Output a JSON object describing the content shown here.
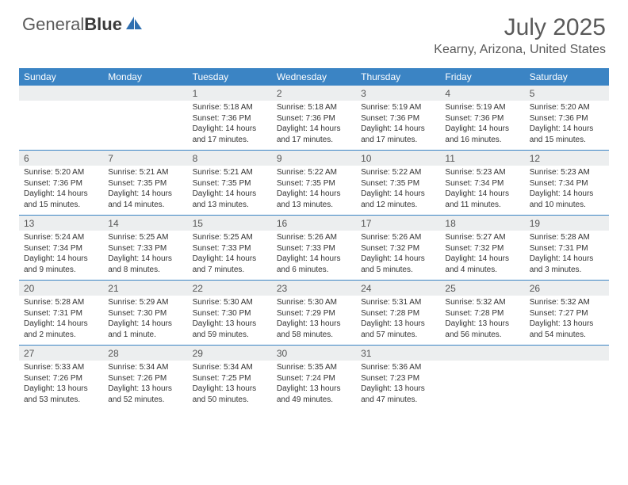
{
  "brand": {
    "part1": "General",
    "part2": "Blue"
  },
  "title": "July 2025",
  "location": "Kearny, Arizona, United States",
  "colors": {
    "header_bg": "#3b84c4",
    "header_text": "#ffffff",
    "daynum_bg": "#eceeef",
    "text": "#333333",
    "title_color": "#5a5a5a",
    "row_divider": "#3b84c4",
    "background": "#ffffff"
  },
  "day_headers": [
    "Sunday",
    "Monday",
    "Tuesday",
    "Wednesday",
    "Thursday",
    "Friday",
    "Saturday"
  ],
  "weeks": [
    {
      "nums": [
        "",
        "",
        "1",
        "2",
        "3",
        "4",
        "5"
      ],
      "cells": [
        null,
        null,
        {
          "sunrise": "Sunrise: 5:18 AM",
          "sunset": "Sunset: 7:36 PM",
          "daylight": "Daylight: 14 hours and 17 minutes."
        },
        {
          "sunrise": "Sunrise: 5:18 AM",
          "sunset": "Sunset: 7:36 PM",
          "daylight": "Daylight: 14 hours and 17 minutes."
        },
        {
          "sunrise": "Sunrise: 5:19 AM",
          "sunset": "Sunset: 7:36 PM",
          "daylight": "Daylight: 14 hours and 17 minutes."
        },
        {
          "sunrise": "Sunrise: 5:19 AM",
          "sunset": "Sunset: 7:36 PM",
          "daylight": "Daylight: 14 hours and 16 minutes."
        },
        {
          "sunrise": "Sunrise: 5:20 AM",
          "sunset": "Sunset: 7:36 PM",
          "daylight": "Daylight: 14 hours and 15 minutes."
        }
      ]
    },
    {
      "nums": [
        "6",
        "7",
        "8",
        "9",
        "10",
        "11",
        "12"
      ],
      "cells": [
        {
          "sunrise": "Sunrise: 5:20 AM",
          "sunset": "Sunset: 7:36 PM",
          "daylight": "Daylight: 14 hours and 15 minutes."
        },
        {
          "sunrise": "Sunrise: 5:21 AM",
          "sunset": "Sunset: 7:35 PM",
          "daylight": "Daylight: 14 hours and 14 minutes."
        },
        {
          "sunrise": "Sunrise: 5:21 AM",
          "sunset": "Sunset: 7:35 PM",
          "daylight": "Daylight: 14 hours and 13 minutes."
        },
        {
          "sunrise": "Sunrise: 5:22 AM",
          "sunset": "Sunset: 7:35 PM",
          "daylight": "Daylight: 14 hours and 13 minutes."
        },
        {
          "sunrise": "Sunrise: 5:22 AM",
          "sunset": "Sunset: 7:35 PM",
          "daylight": "Daylight: 14 hours and 12 minutes."
        },
        {
          "sunrise": "Sunrise: 5:23 AM",
          "sunset": "Sunset: 7:34 PM",
          "daylight": "Daylight: 14 hours and 11 minutes."
        },
        {
          "sunrise": "Sunrise: 5:23 AM",
          "sunset": "Sunset: 7:34 PM",
          "daylight": "Daylight: 14 hours and 10 minutes."
        }
      ]
    },
    {
      "nums": [
        "13",
        "14",
        "15",
        "16",
        "17",
        "18",
        "19"
      ],
      "cells": [
        {
          "sunrise": "Sunrise: 5:24 AM",
          "sunset": "Sunset: 7:34 PM",
          "daylight": "Daylight: 14 hours and 9 minutes."
        },
        {
          "sunrise": "Sunrise: 5:25 AM",
          "sunset": "Sunset: 7:33 PM",
          "daylight": "Daylight: 14 hours and 8 minutes."
        },
        {
          "sunrise": "Sunrise: 5:25 AM",
          "sunset": "Sunset: 7:33 PM",
          "daylight": "Daylight: 14 hours and 7 minutes."
        },
        {
          "sunrise": "Sunrise: 5:26 AM",
          "sunset": "Sunset: 7:33 PM",
          "daylight": "Daylight: 14 hours and 6 minutes."
        },
        {
          "sunrise": "Sunrise: 5:26 AM",
          "sunset": "Sunset: 7:32 PM",
          "daylight": "Daylight: 14 hours and 5 minutes."
        },
        {
          "sunrise": "Sunrise: 5:27 AM",
          "sunset": "Sunset: 7:32 PM",
          "daylight": "Daylight: 14 hours and 4 minutes."
        },
        {
          "sunrise": "Sunrise: 5:28 AM",
          "sunset": "Sunset: 7:31 PM",
          "daylight": "Daylight: 14 hours and 3 minutes."
        }
      ]
    },
    {
      "nums": [
        "20",
        "21",
        "22",
        "23",
        "24",
        "25",
        "26"
      ],
      "cells": [
        {
          "sunrise": "Sunrise: 5:28 AM",
          "sunset": "Sunset: 7:31 PM",
          "daylight": "Daylight: 14 hours and 2 minutes."
        },
        {
          "sunrise": "Sunrise: 5:29 AM",
          "sunset": "Sunset: 7:30 PM",
          "daylight": "Daylight: 14 hours and 1 minute."
        },
        {
          "sunrise": "Sunrise: 5:30 AM",
          "sunset": "Sunset: 7:30 PM",
          "daylight": "Daylight: 13 hours and 59 minutes."
        },
        {
          "sunrise": "Sunrise: 5:30 AM",
          "sunset": "Sunset: 7:29 PM",
          "daylight": "Daylight: 13 hours and 58 minutes."
        },
        {
          "sunrise": "Sunrise: 5:31 AM",
          "sunset": "Sunset: 7:28 PM",
          "daylight": "Daylight: 13 hours and 57 minutes."
        },
        {
          "sunrise": "Sunrise: 5:32 AM",
          "sunset": "Sunset: 7:28 PM",
          "daylight": "Daylight: 13 hours and 56 minutes."
        },
        {
          "sunrise": "Sunrise: 5:32 AM",
          "sunset": "Sunset: 7:27 PM",
          "daylight": "Daylight: 13 hours and 54 minutes."
        }
      ]
    },
    {
      "nums": [
        "27",
        "28",
        "29",
        "30",
        "31",
        "",
        ""
      ],
      "cells": [
        {
          "sunrise": "Sunrise: 5:33 AM",
          "sunset": "Sunset: 7:26 PM",
          "daylight": "Daylight: 13 hours and 53 minutes."
        },
        {
          "sunrise": "Sunrise: 5:34 AM",
          "sunset": "Sunset: 7:26 PM",
          "daylight": "Daylight: 13 hours and 52 minutes."
        },
        {
          "sunrise": "Sunrise: 5:34 AM",
          "sunset": "Sunset: 7:25 PM",
          "daylight": "Daylight: 13 hours and 50 minutes."
        },
        {
          "sunrise": "Sunrise: 5:35 AM",
          "sunset": "Sunset: 7:24 PM",
          "daylight": "Daylight: 13 hours and 49 minutes."
        },
        {
          "sunrise": "Sunrise: 5:36 AM",
          "sunset": "Sunset: 7:23 PM",
          "daylight": "Daylight: 13 hours and 47 minutes."
        },
        null,
        null
      ]
    }
  ]
}
